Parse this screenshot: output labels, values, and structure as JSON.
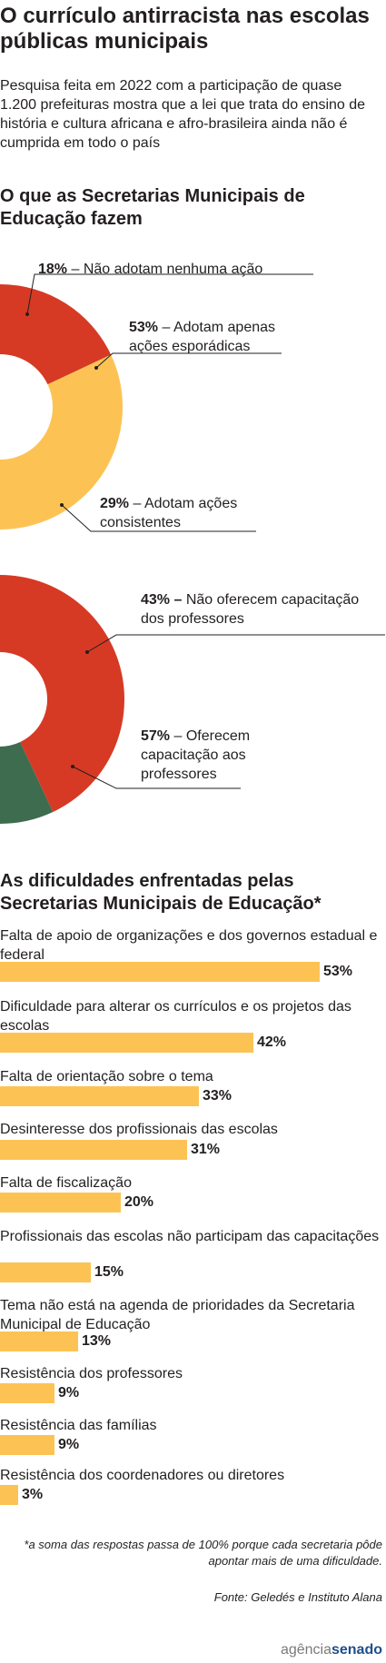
{
  "header": {
    "title": "O currículo antirracista nas escolas públicas municipais",
    "subtitle": "Pesquisa feita em 2022 com a participação de quase 1.200 prefeituras mostra que a lei que trata do ensino de história e cultura africana e afro-brasileira ainda não é cumprida em todo o país"
  },
  "section1_title": "O que as Secretarias Municipais de Educação fazem",
  "section2_title": "As dificuldades enfrentadas pelas Secretarias Municipais de Educação*",
  "colors": {
    "red": "#d63a24",
    "yellow": "#fcc354",
    "green": "#3e6c4f",
    "bar": "#fcc354",
    "leader": "#231f20"
  },
  "chart_data": [
    {
      "type": "pie",
      "subtype": "donut",
      "slices": [
        {
          "label": "Não adotam nenhuma ação",
          "value": 18,
          "pct": "18%",
          "text": "– Não adotam nenhuma ação",
          "color": "#d63a24"
        },
        {
          "label": "Adotam apenas ações esporádicas",
          "value": 53,
          "pct": "53%",
          "text": "– Adotam apenas ações esporádicas",
          "color": "#fcc354"
        },
        {
          "label": "Adotam ações consistentes",
          "value": 29,
          "pct": "29%",
          "text": "– Adotam ações consistentes",
          "color": "#3e6c4f"
        }
      ]
    },
    {
      "type": "pie",
      "subtype": "donut",
      "slices": [
        {
          "label": "Não oferecem capacitação dos professores",
          "value": 43,
          "pct": "43% –",
          "text": "Não oferecem capacitação dos professores",
          "color": "#d63a24"
        },
        {
          "label": "Oferecem capacitação aos professores",
          "value": 57,
          "pct": "57%",
          "text": "– Oferecem capacitação aos professores",
          "color": "#3e6c4f"
        }
      ]
    },
    {
      "type": "bar",
      "orientation": "horizontal",
      "xlim": [
        0,
        53
      ],
      "items": [
        {
          "category": "Falta de apoio de organizações e dos governos estadual e federal",
          "value": 53,
          "label": "53%"
        },
        {
          "category": "Dificuldade para alterar os currículos e os projetos das escolas",
          "value": 42,
          "label": "42%"
        },
        {
          "category": "Falta de orientação sobre o tema",
          "value": 33,
          "label": "33%"
        },
        {
          "category": "Desinteresse dos profissionais das escolas",
          "value": 31,
          "label": "31%"
        },
        {
          "category": "Falta de fiscalização",
          "value": 20,
          "label": "20%"
        },
        {
          "category": "Profissionais das escolas não participam das capacitações",
          "value": 15,
          "label": "15%"
        },
        {
          "category": "Tema não está na agenda de prioridades da Secretaria Municipal de Educação",
          "value": 13,
          "label": "13%"
        },
        {
          "category": "Resistência dos professores",
          "value": 9,
          "label": "9%"
        },
        {
          "category": "Resistência das famílias",
          "value": 9,
          "label": "9%"
        },
        {
          "category": "Resistência dos coordenadores ou diretores",
          "value": 3,
          "label": "3%"
        }
      ]
    }
  ],
  "footnote": "*a soma das respostas passa de 100% porque cada secretaria pôde apontar mais de uma dificuldade.",
  "source": "Fonte: Geledés e Instituto Alana",
  "logo": {
    "part1": "agência",
    "part2": "senado"
  }
}
